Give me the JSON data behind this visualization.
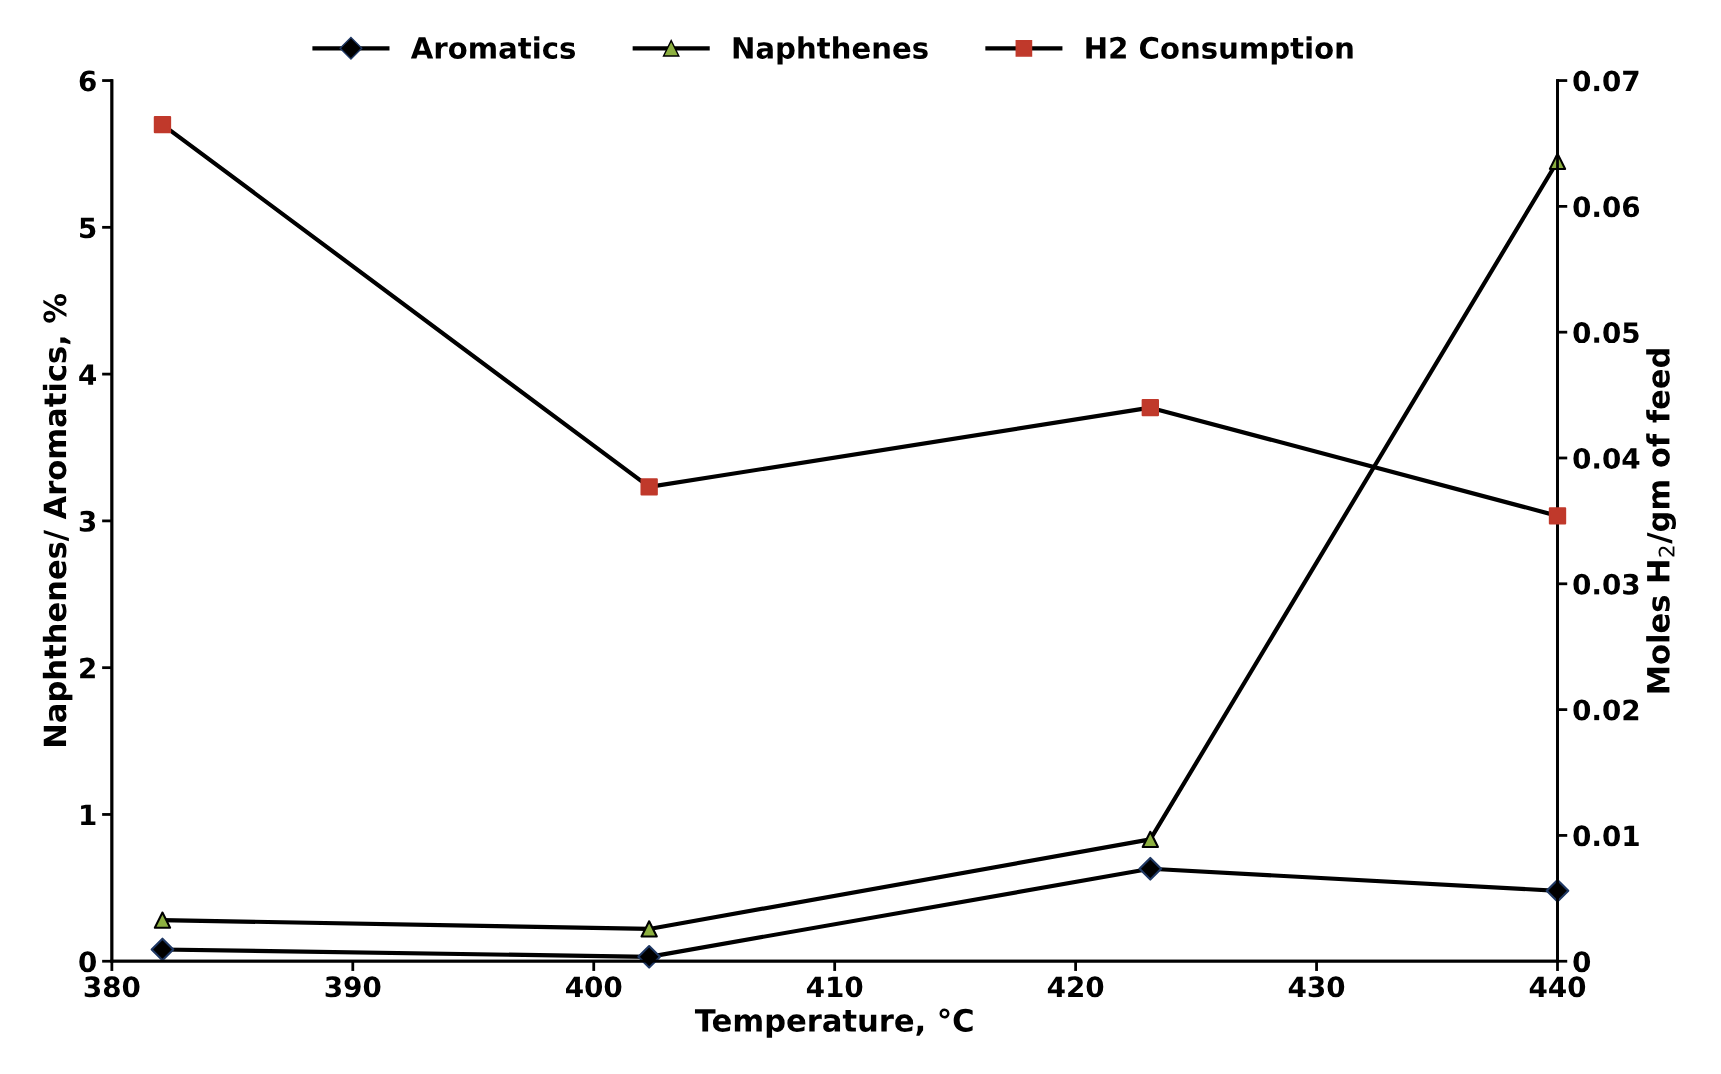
{
  "chart_data": {
    "type": "line",
    "xlabel": "Temperature, °C",
    "ylabel": "Naphthenes/ Aromatics, %",
    "y2label": "Moles H$_{2}$/gm of feed",
    "x": [
      382.1,
      402.3,
      423.1,
      440
    ],
    "series": [
      {
        "name": "Aromatics",
        "color": "#000000",
        "colors": [
          "#1f3864",
          "#1f3864",
          "#1f3864",
          "#1f3864"
        ],
        "marker": "diamond",
        "values": [
          0.08,
          0.03,
          0.63,
          0.48
        ]
      },
      {
        "name": "Naphthenes",
        "color": "#000000",
        "colors": [
          "#8db040",
          "#8db040",
          "#8db040",
          "#8db040"
        ],
        "marker": "triangle",
        "values": [
          0.28,
          0.22,
          0.83,
          5.45
        ]
      },
      {
        "name": "H2 Consumption",
        "color": "#000000",
        "colors": [
          "#c0392b",
          "#c0392b",
          "#c0392b",
          "#c0392b"
        ],
        "marker": "square",
        "axis": "y2",
        "values": [
          0.0665,
          0.0377,
          0.044,
          0.0354
        ]
      }
    ],
    "xlim": [
      380,
      440
    ],
    "xticks": [
      380,
      390,
      400,
      410,
      420,
      430,
      440
    ],
    "ylim": [
      0,
      6
    ],
    "yticks": [
      0,
      1,
      2,
      3,
      4,
      5,
      6
    ],
    "y2lim": [
      0,
      0.07
    ],
    "y2ticks": [
      0,
      0.01,
      0.02,
      0.03,
      0.04,
      0.05,
      0.06,
      0.07
    ],
    "grid": false,
    "legend": "top",
    "line_style": "solid"
  }
}
